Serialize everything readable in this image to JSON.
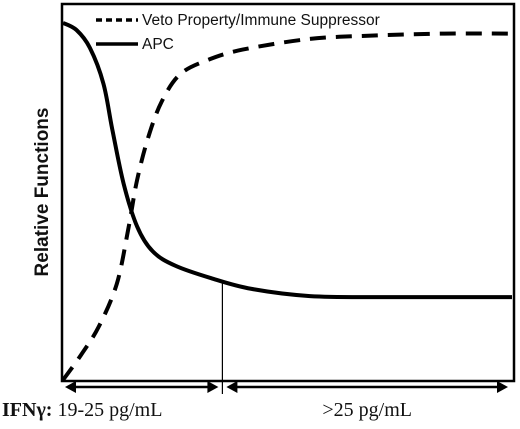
{
  "chart_data": {
    "type": "line",
    "ylabel": "Relative Functions",
    "legend_position": "top-left",
    "grid": false,
    "series": [
      {
        "name": "Veto Property/Immune Suppressor",
        "line_style": "dashed",
        "color": "#000000",
        "points": [
          [
            0,
            0.0
          ],
          [
            0.04,
            0.07
          ],
          [
            0.08,
            0.15
          ],
          [
            0.12,
            0.27
          ],
          [
            0.145,
            0.42
          ],
          [
            0.165,
            0.56
          ],
          [
            0.19,
            0.68
          ],
          [
            0.22,
            0.78
          ],
          [
            0.26,
            0.855
          ],
          [
            0.32,
            0.895
          ],
          [
            0.4,
            0.925
          ],
          [
            0.55,
            0.955
          ],
          [
            0.7,
            0.965
          ],
          [
            0.85,
            0.97
          ],
          [
            1.0,
            0.97
          ]
        ]
      },
      {
        "name": "APC",
        "line_style": "solid",
        "color": "#000000",
        "points": [
          [
            0,
            1.0
          ],
          [
            0.03,
            0.98
          ],
          [
            0.06,
            0.93
          ],
          [
            0.09,
            0.83
          ],
          [
            0.11,
            0.7
          ],
          [
            0.135,
            0.55
          ],
          [
            0.165,
            0.43
          ],
          [
            0.2,
            0.36
          ],
          [
            0.25,
            0.32
          ],
          [
            0.33,
            0.285
          ],
          [
            0.42,
            0.255
          ],
          [
            0.55,
            0.235
          ],
          [
            0.7,
            0.232
          ],
          [
            0.85,
            0.232
          ],
          [
            1.0,
            0.232
          ]
        ]
      }
    ],
    "ylim": [
      0,
      1.05
    ],
    "xlim": [
      0,
      1
    ],
    "divider_x": 0.355,
    "ranges": [
      {
        "prefix": "IFNγ:",
        "label": " 19-25 pg/mL",
        "from": 0,
        "to": 0.355
      },
      {
        "prefix": "",
        "label": ">25 pg/mL",
        "from": 0.355,
        "to": 1
      }
    ]
  }
}
